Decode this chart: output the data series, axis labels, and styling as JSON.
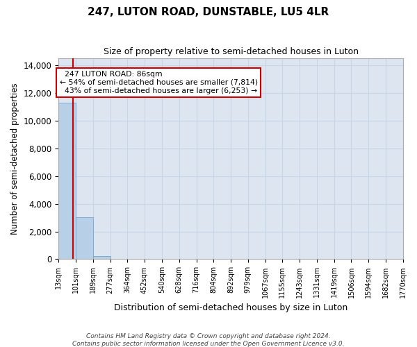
{
  "title": "247, LUTON ROAD, DUNSTABLE, LU5 4LR",
  "subtitle": "Size of property relative to semi-detached houses in Luton",
  "xlabel": "Distribution of semi-detached houses by size in Luton",
  "ylabel": "Number of semi-detached properties",
  "bar_values": [
    11300,
    3050,
    200,
    0,
    0,
    0,
    0,
    0,
    0,
    0,
    0,
    0,
    0,
    0,
    0,
    0,
    0,
    0,
    0,
    0
  ],
  "bin_edges": [
    13,
    101,
    189,
    277,
    364,
    452,
    540,
    628,
    716,
    804,
    892,
    979,
    1067,
    1155,
    1243,
    1331,
    1419,
    1506,
    1594,
    1682,
    1770
  ],
  "x_tick_labels": [
    "13sqm",
    "101sqm",
    "189sqm",
    "277sqm",
    "364sqm",
    "452sqm",
    "540sqm",
    "628sqm",
    "716sqm",
    "804sqm",
    "892sqm",
    "979sqm",
    "1067sqm",
    "1155sqm",
    "1243sqm",
    "1331sqm",
    "1419sqm",
    "1506sqm",
    "1594sqm",
    "1682sqm",
    "1770sqm"
  ],
  "ylim": [
    0,
    14500
  ],
  "yticks": [
    0,
    2000,
    4000,
    6000,
    8000,
    10000,
    12000,
    14000
  ],
  "property_size": 86,
  "property_label": "247 LUTON ROAD: 86sqm",
  "smaller_pct": 54,
  "smaller_count": 7814,
  "larger_pct": 43,
  "larger_count": 6253,
  "bar_color": "#b8cfe8",
  "bar_edge_color": "#7aadd6",
  "red_line_color": "#cc0000",
  "annotation_box_color": "#ffffff",
  "annotation_box_edge": "#cc0000",
  "grid_color": "#c8d4e8",
  "background_color": "#dde6f0",
  "fig_background": "#ffffff",
  "footer_line1": "Contains HM Land Registry data © Crown copyright and database right 2024.",
  "footer_line2": "Contains public sector information licensed under the Open Government Licence v3.0."
}
